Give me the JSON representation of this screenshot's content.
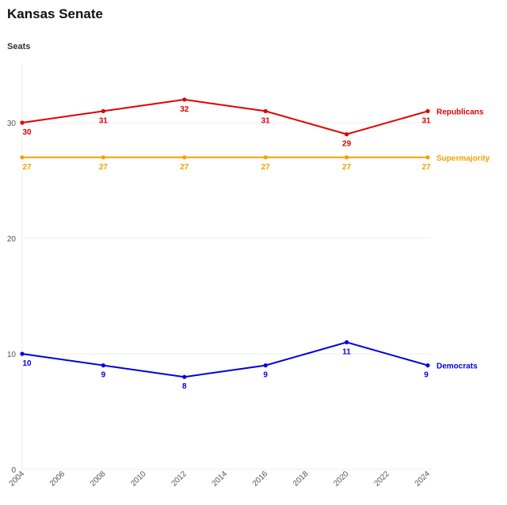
{
  "chart_data": {
    "type": "line",
    "title": "Kansas Senate",
    "ylabel": "Seats",
    "xlabel": "",
    "x": [
      2004,
      2008,
      2012,
      2016,
      2020,
      2024
    ],
    "x_ticks": [
      "2004",
      "2006",
      "2008",
      "2010",
      "2012",
      "2014",
      "2016",
      "2018",
      "2020",
      "2022",
      "2024"
    ],
    "xlim": [
      2004,
      2024
    ],
    "ylim": [
      0,
      35
    ],
    "y_ticks": [
      "0",
      "10",
      "20",
      "30"
    ],
    "grid": "horizontal",
    "legend": "end-of-line labels",
    "series": [
      {
        "name": "Republicans",
        "color": "#e00000",
        "values": [
          30,
          31,
          32,
          31,
          29,
          31
        ],
        "labels": [
          "30",
          "31",
          "32",
          "31",
          "29",
          "31"
        ]
      },
      {
        "name": "Supermajority",
        "color": "#f5a000",
        "values": [
          27,
          27,
          27,
          27,
          27,
          27
        ],
        "labels": [
          "27",
          "27",
          "27",
          "27",
          "27",
          "27"
        ]
      },
      {
        "name": "Democrats",
        "color": "#0000e0",
        "values": [
          10,
          9,
          8,
          9,
          11,
          9
        ],
        "labels": [
          "10",
          "9",
          "8",
          "9",
          "11",
          "9"
        ]
      }
    ]
  }
}
